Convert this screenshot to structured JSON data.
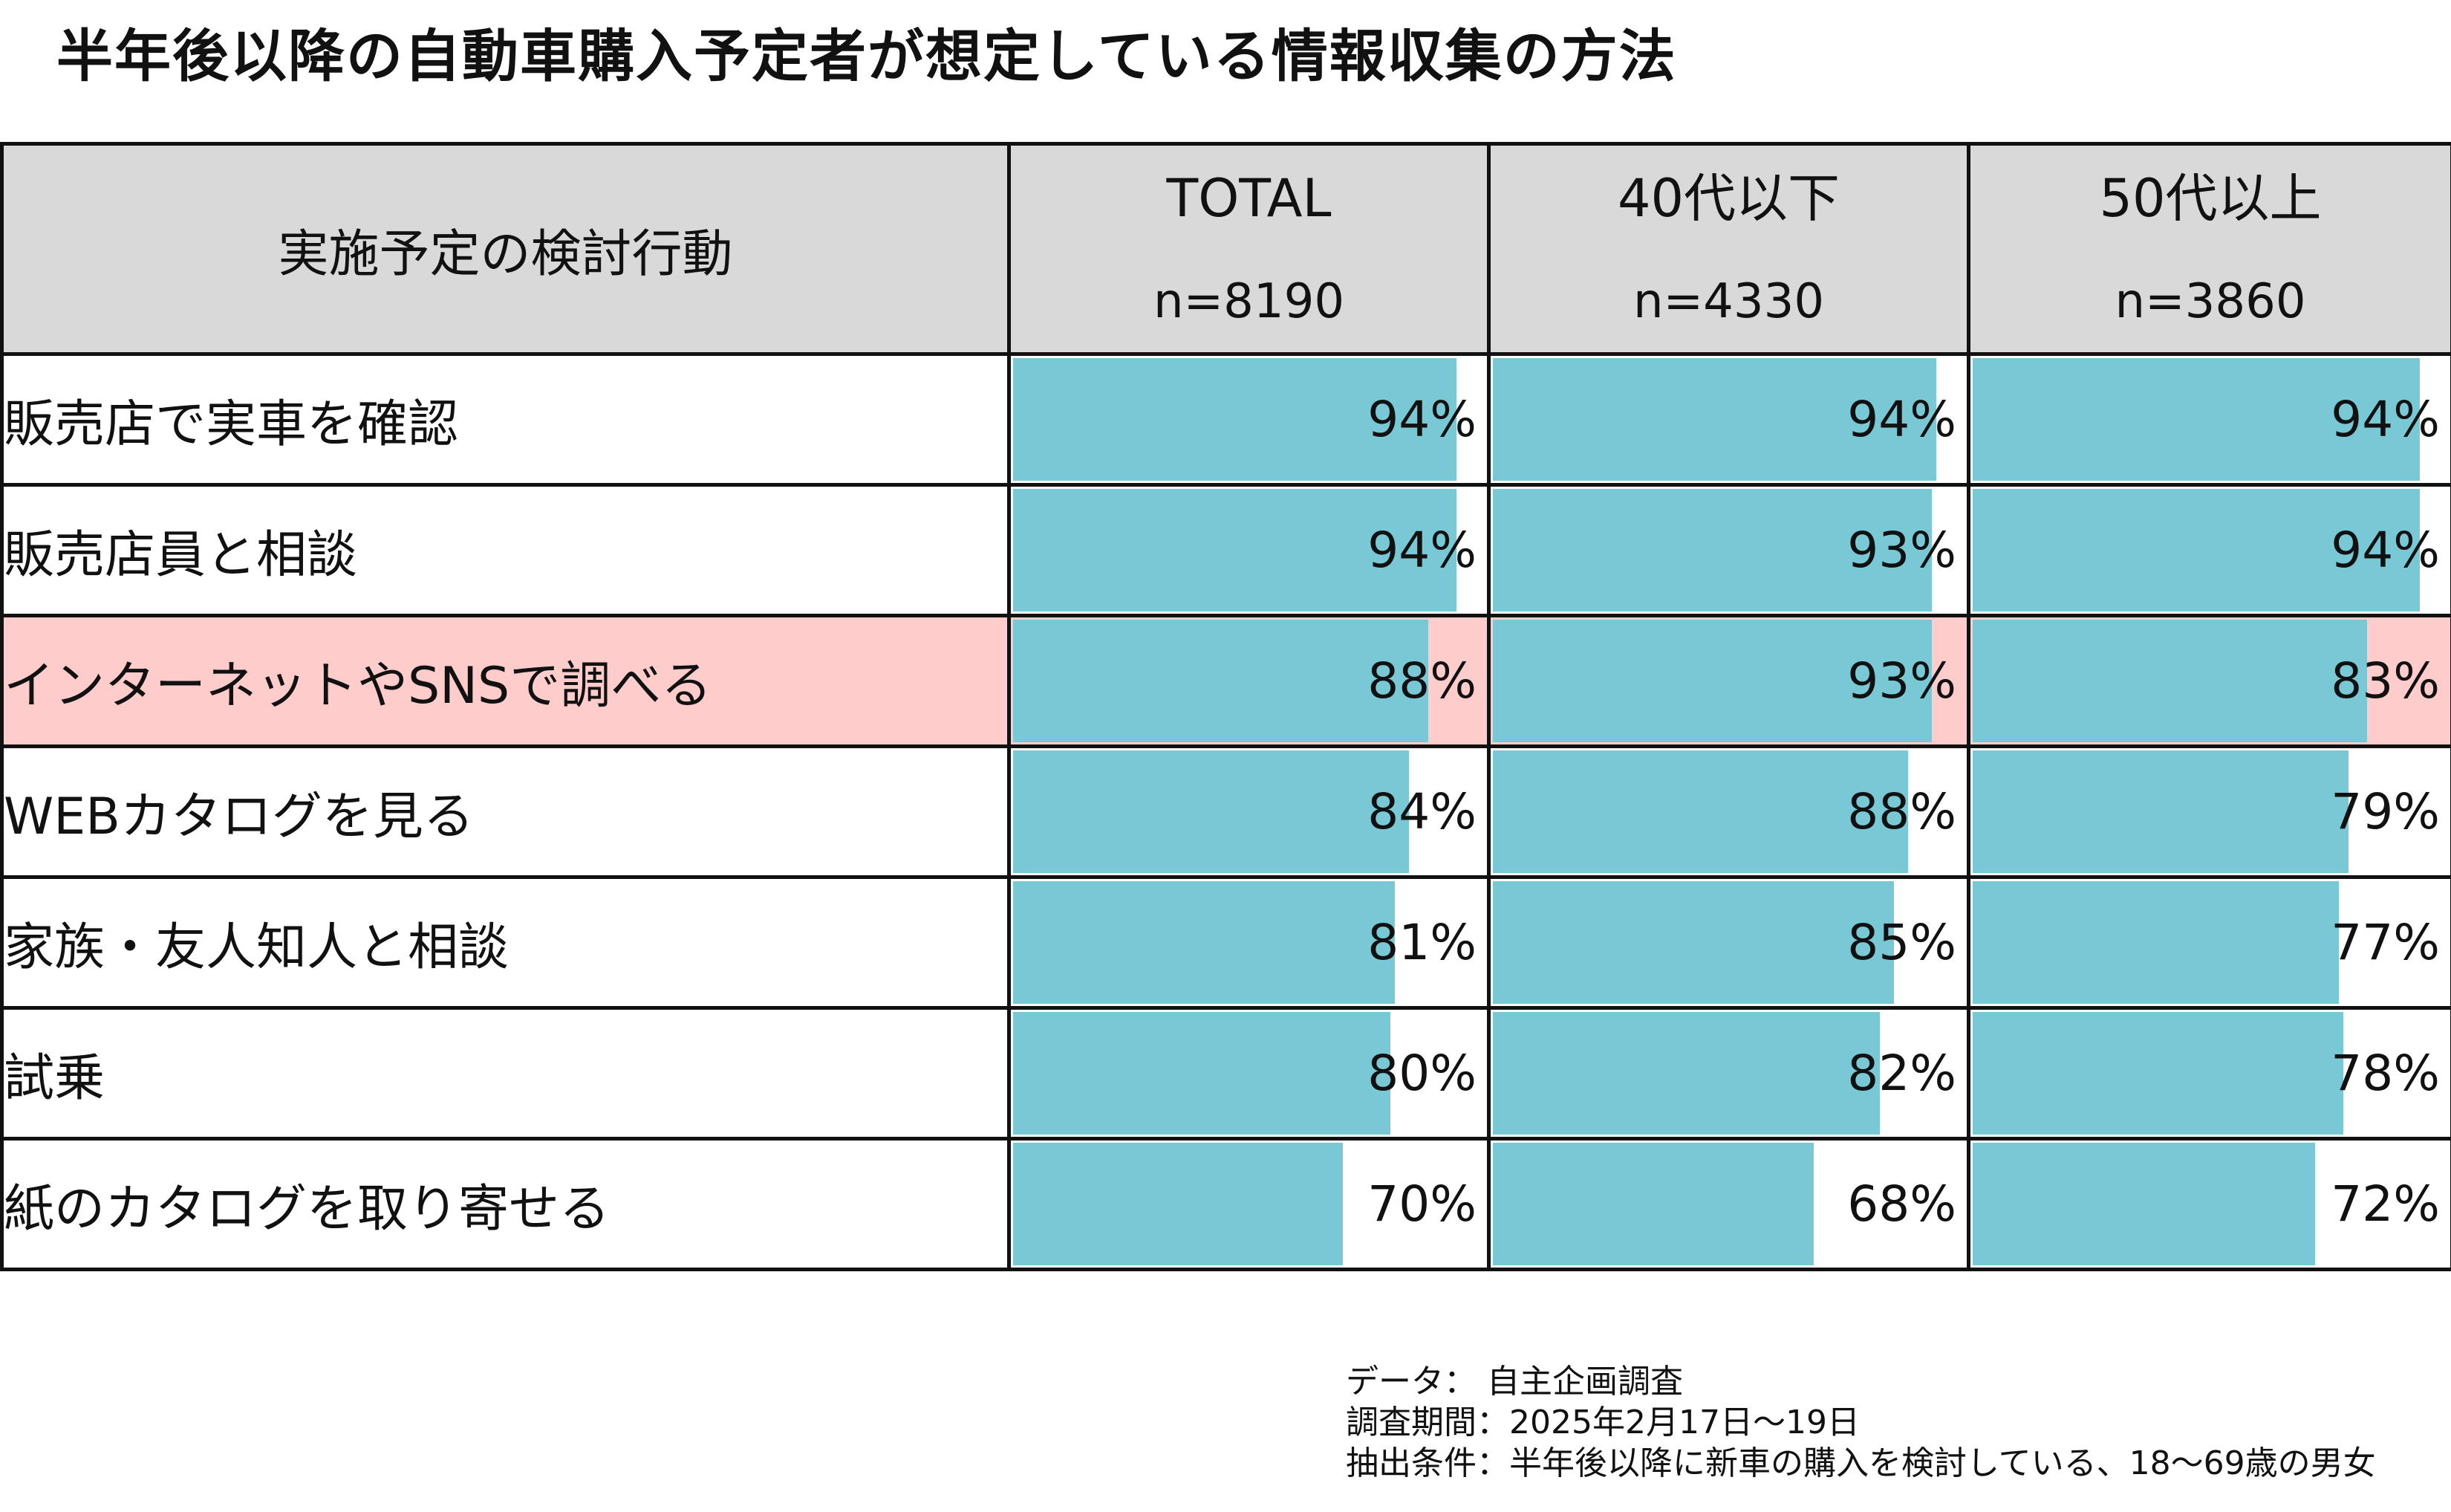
{
  "title": "半年後以降の自動車購入予定者が想定している情報収集の方法",
  "chart_data": {
    "type": "table",
    "row_header": "実施予定の検討行動",
    "groups": [
      {
        "name": "TOTAL",
        "n": "n=8190"
      },
      {
        "name": "40代以下",
        "n": "n=4330"
      },
      {
        "name": "50代以上",
        "n": "n=3860"
      }
    ],
    "highlight_row": 2,
    "highlight_color": "#ffcccc",
    "bar_color": "#78c8d5",
    "max_value": 100,
    "rows": [
      {
        "label": "販売店で実車を確認",
        "values": [
          94,
          94,
          94
        ],
        "labels": [
          "94%",
          "94%",
          "94%"
        ]
      },
      {
        "label": "販売店員と相談",
        "values": [
          94,
          93,
          94
        ],
        "labels": [
          "94%",
          "93%",
          "94%"
        ]
      },
      {
        "label": "インターネットやSNSで調べる",
        "values": [
          88,
          93,
          83
        ],
        "labels": [
          "88%",
          "93%",
          "83%"
        ]
      },
      {
        "label": "WEBカタログを見る",
        "values": [
          84,
          88,
          79
        ],
        "labels": [
          "84%",
          "88%",
          "79%"
        ]
      },
      {
        "label": "家族・友人知人と相談",
        "values": [
          81,
          85,
          77
        ],
        "labels": [
          "81%",
          "85%",
          "77%"
        ]
      },
      {
        "label": "試乗",
        "values": [
          80,
          82,
          78
        ],
        "labels": [
          "80%",
          "82%",
          "78%"
        ]
      },
      {
        "label": "紙のカタログを取り寄せる",
        "values": [
          70,
          68,
          72
        ],
        "labels": [
          "70%",
          "68%",
          "72%"
        ]
      }
    ]
  },
  "notes": [
    "データ： 自主企画調査",
    "調査期間：2025年2月17日～19日",
    "抽出条件：半年後以降に新車の購入を検討している、18～69歳の男女"
  ]
}
